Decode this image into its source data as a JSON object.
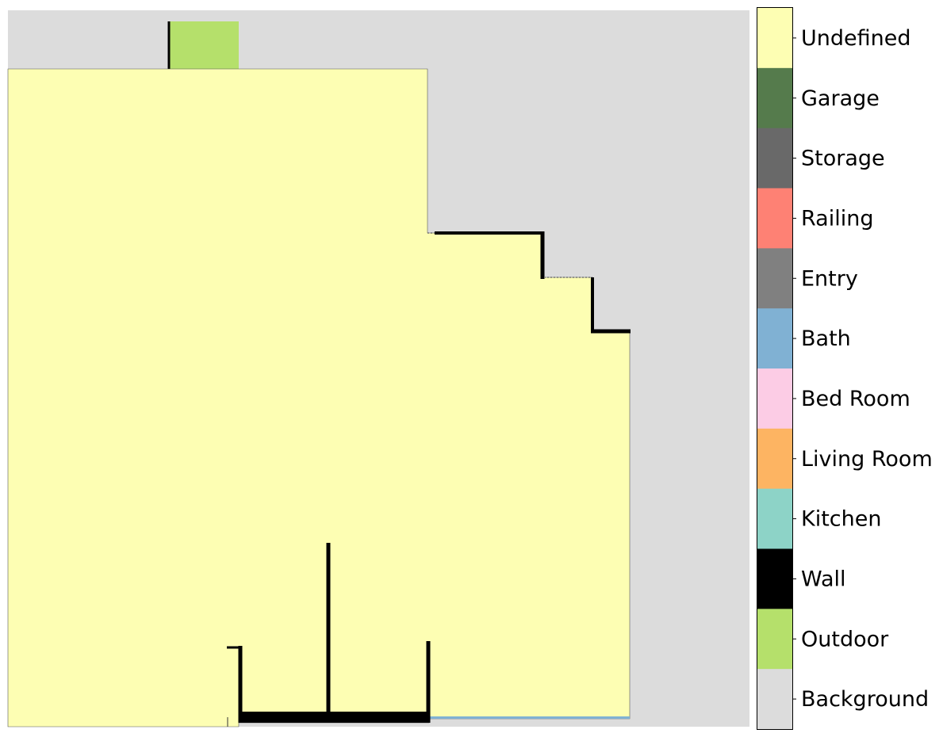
{
  "colors": {
    "background": "#dcdcdc",
    "undefined": "#fdfeb3",
    "outdoor": "#b5e06b",
    "wall": "#000000"
  },
  "legend": {
    "items": [
      {
        "label": "Undefined",
        "color": "#fdfeb3"
      },
      {
        "label": "Garage",
        "color": "#557b4c"
      },
      {
        "label": "Storage",
        "color": "#696969"
      },
      {
        "label": "Railing",
        "color": "#fe8174"
      },
      {
        "label": "Entry",
        "color": "#808080"
      },
      {
        "label": "Bath",
        "color": "#80b1d3"
      },
      {
        "label": "Bed Room",
        "color": "#fccce5"
      },
      {
        "label": "Living Room",
        "color": "#fdb462"
      },
      {
        "label": "Kitchen",
        "color": "#8dd3c7"
      },
      {
        "label": "Wall",
        "color": "#000000"
      },
      {
        "label": "Outdoor",
        "color": "#b5e06b"
      },
      {
        "label": "Background",
        "color": "#dcdcdc"
      }
    ]
  }
}
